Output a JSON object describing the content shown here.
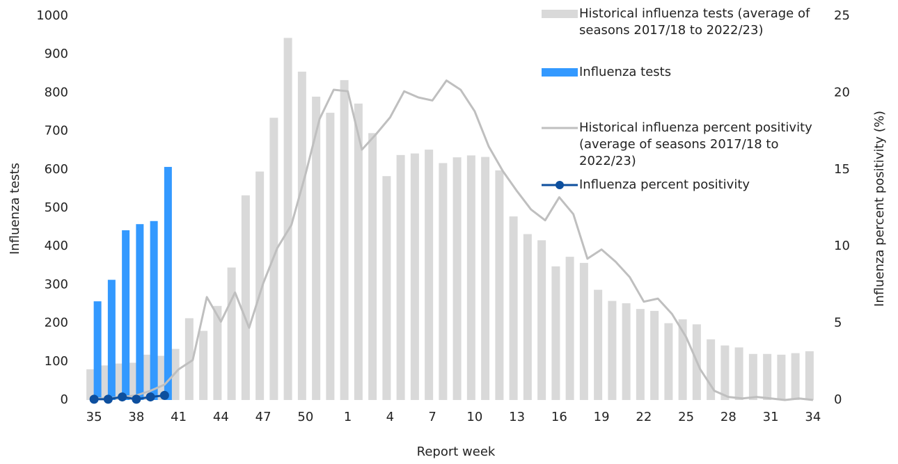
{
  "chart_data": {
    "type": "bar-line",
    "x_label": "Report week",
    "y_label": "Influenza tests",
    "y2_label": "Influenza percent positivity (%)",
    "legend": "top-right",
    "categories": [
      "35",
      null,
      null,
      "38",
      null,
      null,
      "41",
      null,
      null,
      "44",
      null,
      null,
      "47",
      null,
      null,
      "50",
      null,
      null,
      "1",
      null,
      null,
      "4",
      null,
      null,
      "7",
      null,
      null,
      "10",
      null,
      null,
      "13",
      null,
      null,
      "16",
      null,
      null,
      "19",
      null,
      null,
      "22",
      null,
      null,
      "25",
      null,
      null,
      "28",
      null,
      null,
      "31",
      null,
      null,
      "34"
    ],
    "ylim": [
      0,
      1000
    ],
    "yticks": [
      0,
      100,
      200,
      300,
      400,
      500,
      600,
      700,
      800,
      900,
      1000
    ],
    "y2lim": [
      0,
      25
    ],
    "y2ticks": [
      0,
      5,
      10,
      15,
      20,
      25
    ],
    "series": [
      {
        "name": "Historical influenza tests (average of seasons 2017/18 to 2022/23)",
        "kind": "bar",
        "color": "#d9d9d9",
        "values": [
          80,
          90,
          95,
          97,
          118,
          115,
          133,
          213,
          180,
          245,
          345,
          533,
          595,
          735,
          943,
          855,
          790,
          748,
          833,
          772,
          695,
          583,
          638,
          642,
          652,
          617,
          632,
          637,
          633,
          598,
          478,
          432,
          416,
          348,
          373,
          357,
          287,
          258,
          252,
          237,
          232,
          200,
          210,
          197,
          158,
          142,
          137,
          120,
          120,
          118,
          122,
          127
        ]
      },
      {
        "name": "Influenza tests",
        "kind": "bar",
        "color": "#3399ff",
        "values": [
          257,
          313,
          442,
          458,
          466,
          607,
          null,
          null,
          null,
          null,
          null,
          null,
          null,
          null,
          null,
          null,
          null,
          null,
          null,
          null,
          null,
          null,
          null,
          null,
          null,
          null,
          null,
          null,
          null,
          null,
          null,
          null,
          null,
          null,
          null,
          null,
          null,
          null,
          null,
          null,
          null,
          null,
          null,
          null,
          null,
          null,
          null,
          null,
          null,
          null,
          null,
          null
        ]
      },
      {
        "name": "Historical influenza percent positivity (average of seasons 2017/18 to 2022/23)",
        "kind": "line",
        "axis": "y2",
        "color": "#bfbfbf",
        "values": [
          0.1,
          0.1,
          0.2,
          0.3,
          0.6,
          1.0,
          2.0,
          2.6,
          6.7,
          5.1,
          7.0,
          4.7,
          7.6,
          9.9,
          11.4,
          14.7,
          18.3,
          20.2,
          20.1,
          16.3,
          17.3,
          18.4,
          20.1,
          19.7,
          19.5,
          20.8,
          20.2,
          18.8,
          16.5,
          14.9,
          13.6,
          12.4,
          11.7,
          13.2,
          12.1,
          9.2,
          9.8,
          9.0,
          8.0,
          6.4,
          6.6,
          5.6,
          4.1,
          2.0,
          0.6,
          0.2,
          0.1,
          0.2,
          0.1,
          0.0,
          0.1,
          0.0
        ]
      },
      {
        "name": "Influenza percent positivity",
        "kind": "line-marker",
        "axis": "y2",
        "color": "#0d4f9e",
        "values": [
          0.05,
          0.05,
          0.2,
          0.05,
          0.2,
          0.3,
          null,
          null,
          null,
          null,
          null,
          null,
          null,
          null,
          null,
          null,
          null,
          null,
          null,
          null,
          null,
          null,
          null,
          null,
          null,
          null,
          null,
          null,
          null,
          null,
          null,
          null,
          null,
          null,
          null,
          null,
          null,
          null,
          null,
          null,
          null,
          null,
          null,
          null,
          null,
          null,
          null,
          null,
          null,
          null,
          null,
          null
        ]
      }
    ]
  }
}
